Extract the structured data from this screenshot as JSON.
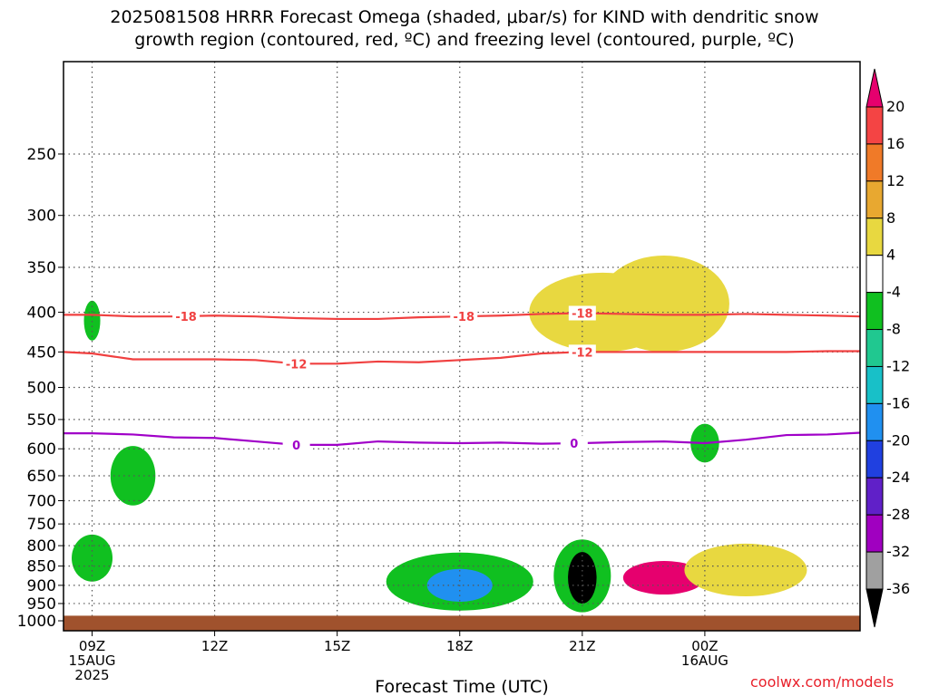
{
  "title_line1": "2025081508 HRRR Forecast Omega (shaded, μbar/s) for KIND with dendritic snow",
  "title_line2": "growth region (contoured, red, ºC) and freezing level (contoured, purple, ºC)",
  "credit": "coolwx.com/models",
  "chart_data": {
    "type": "time-height",
    "xlabel": "Forecast Time (UTC)",
    "x_range_hours": [
      8.3,
      27.8
    ],
    "y_scale": "log-pressure",
    "y_range_hpa": [
      190,
      1030
    ],
    "x_ticks": [
      {
        "hour": 9,
        "lines": [
          "09Z",
          "15AUG",
          "2025"
        ]
      },
      {
        "hour": 12,
        "lines": [
          "12Z"
        ]
      },
      {
        "hour": 15,
        "lines": [
          "15Z"
        ]
      },
      {
        "hour": 18,
        "lines": [
          "18Z"
        ]
      },
      {
        "hour": 21,
        "lines": [
          "21Z"
        ]
      },
      {
        "hour": 24,
        "lines": [
          "00Z",
          "16AUG"
        ]
      }
    ],
    "y_ticks": [
      250,
      300,
      350,
      400,
      450,
      500,
      550,
      600,
      650,
      700,
      750,
      800,
      850,
      900,
      950,
      1000
    ],
    "grid": "dotted",
    "colorbar": {
      "position": "right",
      "labels": [
        "20",
        "16",
        "12",
        "8",
        "4",
        "-4",
        "-8",
        "-12",
        "-16",
        "-20",
        "-24",
        "-28",
        "-32",
        "-36"
      ],
      "colors_top_to_bottom": [
        "#e6006e",
        "#f44444",
        "#f07a28",
        "#e8a830",
        "#e8d840",
        "#ffffff",
        "#10c020",
        "#20c890",
        "#18c0c8",
        "#2090f0",
        "#2040e0",
        "#6020c8",
        "#a000c0",
        "#a0a0a0",
        "#000000"
      ]
    },
    "contours": [
      {
        "name": "-18",
        "color": "#f04040",
        "label": "-18",
        "points": [
          [
            8.3,
            403
          ],
          [
            9,
            403
          ],
          [
            10,
            405
          ],
          [
            11,
            405
          ],
          [
            12,
            404
          ],
          [
            13,
            405
          ],
          [
            14,
            407
          ],
          [
            15,
            408
          ],
          [
            16,
            408
          ],
          [
            17,
            406
          ],
          [
            18,
            405
          ],
          [
            19,
            404
          ],
          [
            20,
            402
          ],
          [
            21,
            401
          ],
          [
            22,
            402
          ],
          [
            23,
            403
          ],
          [
            24,
            403
          ],
          [
            25,
            402
          ],
          [
            26,
            403
          ],
          [
            27,
            404
          ],
          [
            27.8,
            405
          ]
        ],
        "label_hours": [
          11.3,
          18.1,
          21.0
        ]
      },
      {
        "name": "-12",
        "color": "#f04040",
        "label": "-12",
        "points": [
          [
            8.3,
            450
          ],
          [
            9,
            452
          ],
          [
            10,
            460
          ],
          [
            11,
            460
          ],
          [
            12,
            460
          ],
          [
            13,
            461
          ],
          [
            14,
            466
          ],
          [
            15,
            466
          ],
          [
            16,
            463
          ],
          [
            17,
            464
          ],
          [
            18,
            461
          ],
          [
            19,
            458
          ],
          [
            20,
            452
          ],
          [
            21,
            450
          ],
          [
            22,
            450
          ],
          [
            23,
            450
          ],
          [
            24,
            450
          ],
          [
            25,
            450
          ],
          [
            26,
            450
          ],
          [
            27,
            449
          ],
          [
            27.8,
            449
          ]
        ],
        "label_hours": [
          14.0,
          21.0
        ]
      },
      {
        "name": "0",
        "color": "#a000c8",
        "label": "0",
        "points": [
          [
            8.3,
            573
          ],
          [
            9,
            573
          ],
          [
            10,
            575
          ],
          [
            11,
            580
          ],
          [
            12,
            581
          ],
          [
            13,
            587
          ],
          [
            14,
            593
          ],
          [
            15,
            593
          ],
          [
            16,
            587
          ],
          [
            17,
            589
          ],
          [
            18,
            590
          ],
          [
            19,
            589
          ],
          [
            20,
            591
          ],
          [
            21,
            590
          ],
          [
            22,
            588
          ],
          [
            23,
            587
          ],
          [
            24,
            590
          ],
          [
            25,
            584
          ],
          [
            26,
            576
          ],
          [
            27,
            575
          ],
          [
            27.8,
            572
          ]
        ],
        "label_hours": [
          14.0,
          20.8
        ]
      }
    ],
    "shaded_regions": [
      {
        "color": "#e8d840",
        "t": 21.5,
        "p": 400,
        "dt": 1.8,
        "dp": 50
      },
      {
        "color": "#e8d840",
        "t": 23.0,
        "p": 390,
        "dt": 1.6,
        "dp": 60
      },
      {
        "color": "#10c020",
        "t": 9.0,
        "p": 410,
        "dt": 0.2,
        "dp": 25
      },
      {
        "color": "#10c020",
        "t": 10.0,
        "p": 650,
        "dt": 0.55,
        "dp": 60
      },
      {
        "color": "#10c020",
        "t": 9.0,
        "p": 830,
        "dt": 0.5,
        "dp": 60
      },
      {
        "color": "#10c020",
        "t": 18.0,
        "p": 890,
        "dt": 1.8,
        "dp": 80
      },
      {
        "color": "#2090f0",
        "t": 18.0,
        "p": 900,
        "dt": 0.8,
        "dp": 45
      },
      {
        "color": "#10c020",
        "t": 21.0,
        "p": 875,
        "dt": 0.7,
        "dp": 100
      },
      {
        "color": "#000000",
        "t": 21.0,
        "p": 880,
        "dt": 0.35,
        "dp": 70
      },
      {
        "color": "#e6006e",
        "t": 23.0,
        "p": 880,
        "dt": 1.0,
        "dp": 45
      },
      {
        "color": "#e8d840",
        "t": 25.0,
        "p": 860,
        "dt": 1.5,
        "dp": 70
      },
      {
        "color": "#10c020",
        "t": 24.0,
        "p": 590,
        "dt": 0.35,
        "dp": 35
      }
    ]
  }
}
